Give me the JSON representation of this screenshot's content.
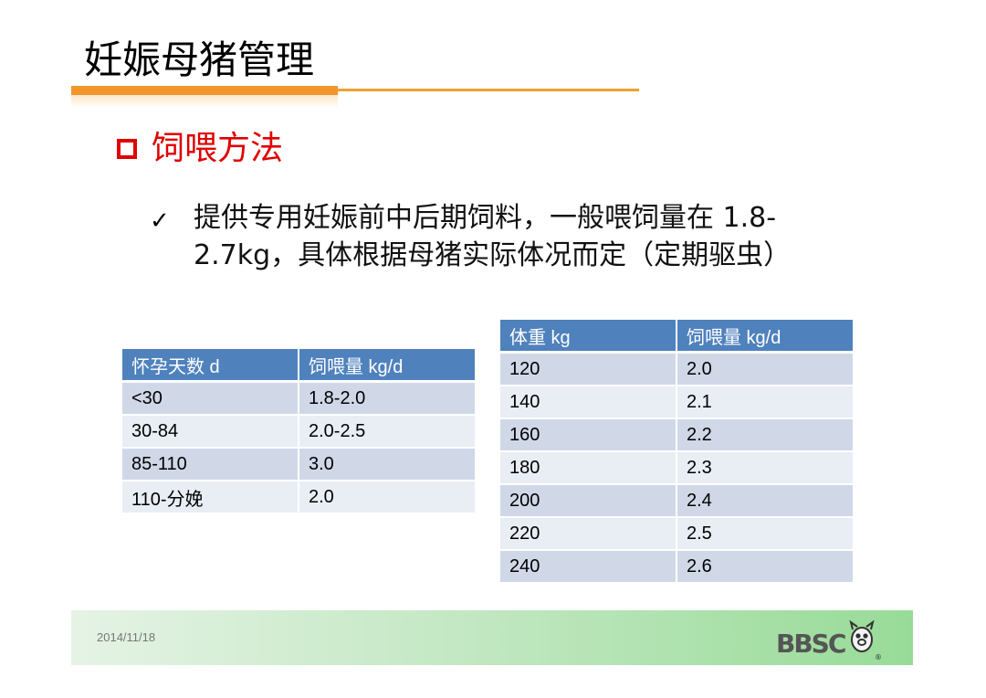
{
  "title": "妊娠母猪管理",
  "section": {
    "label": "饲喂方法"
  },
  "bullet": {
    "text": "提供专用妊娠前中后期饲料，一般喂饲量在 1.8-2.7kg，具体根据母猪实际体况而定（定期驱虫）"
  },
  "table_days": {
    "headers": [
      "怀孕天数 d",
      "饲喂量 kg/d"
    ],
    "rows": [
      [
        "<30",
        "1.8-2.0"
      ],
      [
        "30-84",
        "2.0-2.5"
      ],
      [
        "85-110",
        "3.0"
      ],
      [
        "110-分娩",
        "2.0"
      ]
    ]
  },
  "table_weight": {
    "headers": [
      "体重 kg",
      "饲喂量 kg/d"
    ],
    "rows": [
      [
        "120",
        "2.0"
      ],
      [
        "140",
        "2.1"
      ],
      [
        "160",
        "2.2"
      ],
      [
        "180",
        "2.3"
      ],
      [
        "200",
        "2.4"
      ],
      [
        "220",
        "2.5"
      ],
      [
        "240",
        "2.6"
      ]
    ]
  },
  "footer": {
    "date": "2014/11/18",
    "logo_text": "BBSC",
    "registered_mark": "®"
  },
  "colors": {
    "accent_orange": "#f0962a",
    "section_red": "#e00000",
    "table_header": "#4f81bd",
    "row_dark": "#d0d8e8",
    "row_light": "#e9edf4"
  }
}
